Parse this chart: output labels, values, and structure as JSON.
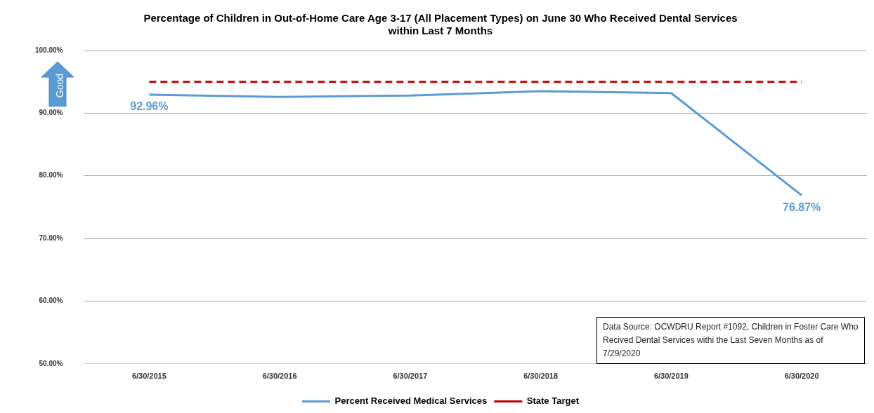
{
  "chart_data": {
    "type": "line",
    "title": "Percentage of Children in Out-of-Home Care Age 3-17 (All Placement Types) on June 30 Who Received Dental Services\nwithin Last 7 Months",
    "categories": [
      "6/30/2015",
      "6/30/2016",
      "6/30/2017",
      "6/30/2018",
      "6/30/2019",
      "6/30/2020"
    ],
    "series": [
      {
        "name": "Percent Received Medical Services",
        "color": "#5b9bd5",
        "values": [
          92.96,
          92.6,
          92.8,
          93.5,
          93.2,
          76.87
        ],
        "value_labels": [
          "92.96%",
          null,
          null,
          null,
          null,
          "76.87%"
        ],
        "line_style": "solid"
      },
      {
        "name": "State Target",
        "color": "#c00000",
        "values": [
          95,
          95,
          95,
          95,
          95,
          95
        ],
        "line_style": "dashed"
      }
    ],
    "ylim": [
      50,
      100
    ],
    "yticks": [
      {
        "value": 50,
        "label": "50.00%"
      },
      {
        "value": 60,
        "label": "60.00%"
      },
      {
        "value": 70,
        "label": "70.00%"
      },
      {
        "value": 80,
        "label": "80.00%"
      },
      {
        "value": 90,
        "label": "90.00%"
      },
      {
        "value": 100,
        "label": "100.00%"
      }
    ],
    "grid": "y",
    "legend": "bottom",
    "marker": "none",
    "annotations": [
      "Good",
      "Data Source: OCWDRU Report #1092,  Children in Foster Care Who Recived Dental Services withi the Last Seven Months as of 7/29/2020"
    ]
  }
}
